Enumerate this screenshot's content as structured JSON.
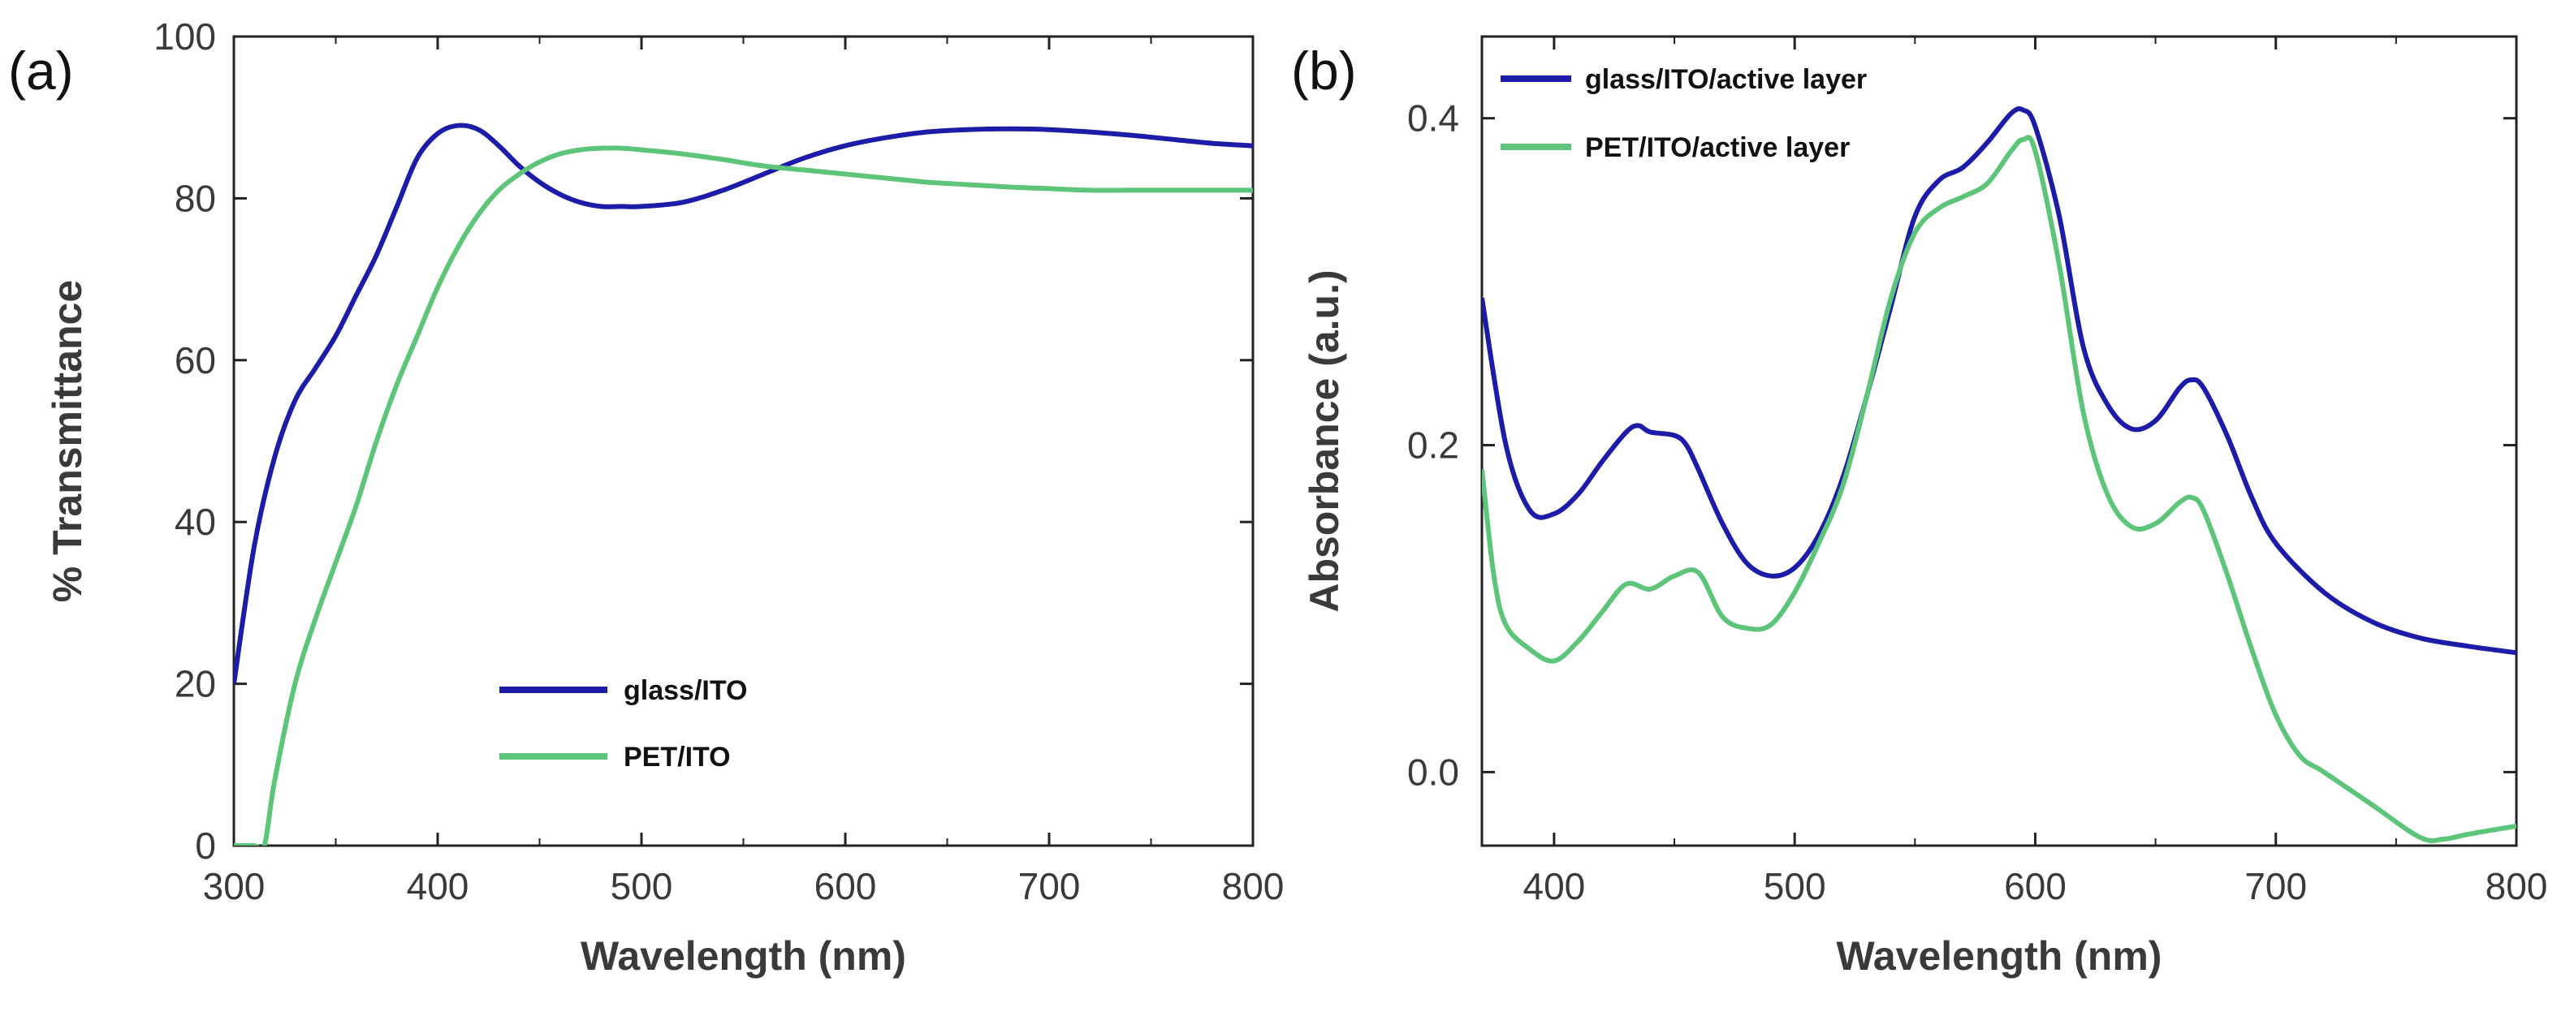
{
  "colors": {
    "series_1": "#1c1ca8",
    "series_2": "#5cc57a",
    "axis": "#222222"
  },
  "chart_data": [
    {
      "panel_label": "(a)",
      "type": "line",
      "xlabel": "Wavelength (nm)",
      "ylabel": "% Transmittance",
      "xlim": [
        300,
        800
      ],
      "ylim": [
        0,
        100
      ],
      "xticks": [
        300,
        400,
        500,
        600,
        700,
        800
      ],
      "yticks": [
        0,
        20,
        40,
        60,
        80,
        100
      ],
      "grid": false,
      "legend_position": "bottom-center",
      "series": [
        {
          "name": "glass/ITO",
          "color": "#1c1ca8",
          "x": [
            300,
            310,
            320,
            330,
            340,
            350,
            360,
            370,
            380,
            390,
            400,
            410,
            420,
            430,
            440,
            450,
            460,
            470,
            480,
            490,
            500,
            520,
            540,
            560,
            580,
            600,
            620,
            640,
            660,
            680,
            700,
            720,
            740,
            760,
            780,
            800
          ],
          "y": [
            20,
            37,
            48,
            55,
            59,
            63,
            68,
            73,
            79,
            85,
            88,
            89,
            88.5,
            86.5,
            84,
            82,
            80.5,
            79.5,
            79,
            79,
            79,
            79.5,
            81,
            83,
            85,
            86.5,
            87.5,
            88.2,
            88.5,
            88.6,
            88.5,
            88.2,
            87.8,
            87.3,
            86.8,
            86.5
          ]
        },
        {
          "name": "PET/ITO",
          "color": "#5cc57a",
          "x": [
            300,
            310,
            315,
            320,
            330,
            340,
            350,
            360,
            370,
            380,
            390,
            400,
            410,
            420,
            430,
            440,
            450,
            460,
            470,
            480,
            490,
            500,
            520,
            540,
            560,
            580,
            600,
            620,
            640,
            660,
            680,
            700,
            720,
            740,
            760,
            780,
            800
          ],
          "y": [
            0,
            0,
            0,
            8,
            20,
            28,
            35,
            42,
            50,
            57,
            63,
            69,
            74,
            78,
            81,
            83,
            84.5,
            85.5,
            86,
            86.2,
            86.2,
            86,
            85.5,
            84.8,
            84,
            83.5,
            83,
            82.5,
            82,
            81.7,
            81.4,
            81.2,
            81,
            81,
            81,
            81,
            81
          ]
        }
      ]
    },
    {
      "panel_label": "(b)",
      "type": "line",
      "xlabel": "Wavelength (nm)",
      "ylabel": "Absorbance (a.u.)",
      "xlim": [
        370,
        800
      ],
      "ylim": [
        -0.045,
        0.45
      ],
      "xticks": [
        400,
        500,
        600,
        700,
        800
      ],
      "yticks": [
        0.0,
        0.2,
        0.4
      ],
      "ytick_labels": [
        "0.0",
        "0.2",
        "0.4"
      ],
      "grid": false,
      "legend_position": "top-left",
      "series": [
        {
          "name": "glass/ITO/active  layer",
          "color": "#1c1ca8",
          "x": [
            370,
            380,
            390,
            400,
            410,
            420,
            430,
            435,
            440,
            450,
            455,
            460,
            470,
            480,
            490,
            500,
            510,
            520,
            530,
            540,
            550,
            560,
            570,
            580,
            590,
            595,
            600,
            610,
            620,
            630,
            640,
            650,
            660,
            665,
            670,
            680,
            690,
            700,
            720,
            740,
            760,
            780,
            800
          ],
          "y": [
            0.29,
            0.2,
            0.16,
            0.158,
            0.17,
            0.19,
            0.208,
            0.212,
            0.208,
            0.206,
            0.2,
            0.185,
            0.152,
            0.128,
            0.12,
            0.125,
            0.145,
            0.18,
            0.23,
            0.285,
            0.34,
            0.362,
            0.37,
            0.385,
            0.403,
            0.405,
            0.395,
            0.34,
            0.26,
            0.225,
            0.21,
            0.215,
            0.235,
            0.24,
            0.235,
            0.205,
            0.168,
            0.14,
            0.11,
            0.092,
            0.082,
            0.077,
            0.073
          ]
        },
        {
          "name": "PET/ITO/active  layer",
          "color": "#5cc57a",
          "x": [
            370,
            375,
            380,
            390,
            400,
            410,
            420,
            430,
            440,
            450,
            460,
            470,
            480,
            490,
            500,
            510,
            520,
            530,
            540,
            550,
            560,
            570,
            580,
            590,
            595,
            600,
            610,
            620,
            630,
            640,
            650,
            660,
            665,
            670,
            680,
            690,
            700,
            710,
            720,
            740,
            760,
            770,
            780,
            800
          ],
          "y": [
            0.185,
            0.12,
            0.09,
            0.075,
            0.068,
            0.08,
            0.098,
            0.115,
            0.112,
            0.12,
            0.122,
            0.095,
            0.088,
            0.09,
            0.11,
            0.14,
            0.175,
            0.23,
            0.29,
            0.33,
            0.345,
            0.352,
            0.36,
            0.38,
            0.387,
            0.38,
            0.31,
            0.22,
            0.17,
            0.15,
            0.152,
            0.165,
            0.168,
            0.16,
            0.12,
            0.075,
            0.035,
            0.01,
            0.0,
            -0.02,
            -0.04,
            -0.041,
            -0.038,
            -0.033
          ]
        }
      ]
    }
  ]
}
